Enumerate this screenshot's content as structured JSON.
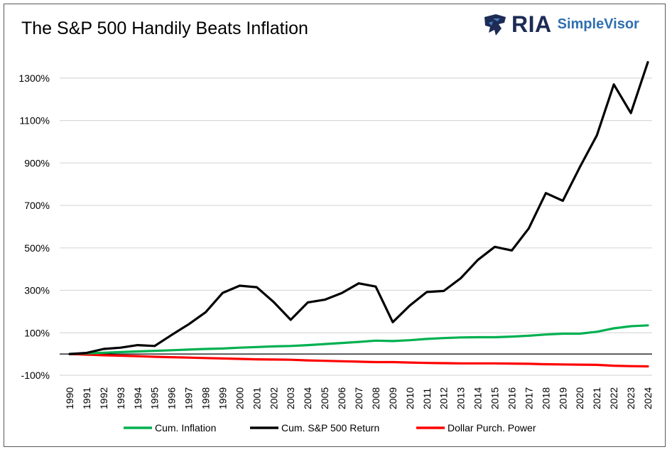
{
  "title": "The S&P 500 Handily Beats Inflation",
  "logo": {
    "brand": "RIA",
    "product": "SimpleVisor",
    "icon": "eagle-icon"
  },
  "chart_data": {
    "type": "line",
    "x": [
      "1990",
      "1991",
      "1992",
      "1993",
      "1994",
      "1995",
      "1996",
      "1997",
      "1998",
      "1999",
      "2000",
      "2001",
      "2002",
      "2003",
      "2004",
      "2005",
      "2006",
      "2007",
      "2008",
      "2009",
      "2010",
      "2011",
      "2012",
      "2013",
      "2014",
      "2015",
      "2016",
      "2017",
      "2018",
      "2019",
      "2020",
      "2021",
      "2022",
      "2023",
      "2024"
    ],
    "ylim": [
      -100,
      1400
    ],
    "yticks": [
      -100,
      100,
      300,
      500,
      700,
      900,
      1100,
      1300
    ],
    "ytick_labels": [
      "-100%",
      "100%",
      "300%",
      "500%",
      "700%",
      "900%",
      "1100%",
      "1300%"
    ],
    "grid": true,
    "legend_position": "bottom",
    "series": [
      {
        "name": "Cum. Inflation",
        "color": "#00b050",
        "values": [
          0,
          3,
          6,
          9,
          12,
          15,
          18,
          21,
          24,
          26,
          30,
          33,
          36,
          38,
          42,
          47,
          52,
          57,
          63,
          61,
          65,
          71,
          75,
          78,
          79,
          79,
          82,
          86,
          92,
          96,
          96,
          105,
          121,
          131,
          135
        ]
      },
      {
        "name": "Cum. S&P 500 Return",
        "color": "#000000",
        "values": [
          0,
          5,
          24,
          30,
          42,
          38,
          90,
          140,
          197,
          288,
          322,
          315,
          245,
          161,
          243,
          256,
          287,
          333,
          318,
          150,
          228,
          292,
          297,
          357,
          443,
          505,
          488,
          592,
          758,
          722,
          880,
          1030,
          1270,
          1135,
          1375
        ]
      },
      {
        "name": "Dollar Purch. Power",
        "color": "#ff0000",
        "values": [
          0,
          -3,
          -6,
          -8,
          -10,
          -13,
          -15,
          -17,
          -19,
          -21,
          -23,
          -25,
          -26,
          -27,
          -30,
          -32,
          -34,
          -36,
          -38,
          -38,
          -40,
          -42,
          -43,
          -44,
          -44,
          -44,
          -45,
          -46,
          -48,
          -49,
          -50,
          -51,
          -55,
          -57,
          -58
        ]
      }
    ]
  }
}
